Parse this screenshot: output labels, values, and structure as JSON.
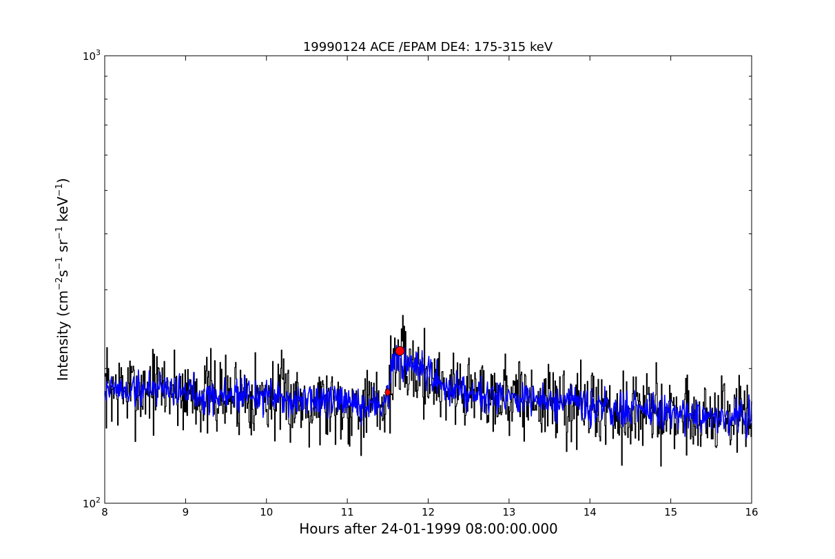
{
  "chart_data": {
    "type": "line",
    "title": "19990124 ACE /EPAM DE4: 175-315 keV",
    "xlabel": "Hours after 24-01-1999 08:00:00.000",
    "ylabel_prefix": "Intensity (cm",
    "ylabel_parts": [
      {
        "text": "Intensity (cm",
        "sup": false
      },
      {
        "text": "−2",
        "sup": true
      },
      {
        "text": "s",
        "sup": false
      },
      {
        "text": "−1",
        "sup": true
      },
      {
        "text": " sr",
        "sup": false
      },
      {
        "text": "−1",
        "sup": true
      },
      {
        "text": " keV",
        "sup": false
      },
      {
        "text": "−1",
        "sup": true
      },
      {
        "text": ")",
        "sup": false
      }
    ],
    "xlim": [
      8,
      16
    ],
    "ylim": [
      100,
      1000
    ],
    "yscale": "log",
    "xticks": [
      8,
      9,
      10,
      11,
      12,
      13,
      14,
      15,
      16
    ],
    "yticks_major": [
      {
        "value": 100,
        "base": "10",
        "exp": "2"
      },
      {
        "value": 1000,
        "base": "10",
        "exp": "3"
      }
    ],
    "yticks_minor": [
      200,
      300,
      400,
      500,
      600,
      700,
      800,
      900
    ],
    "grid": false,
    "colors": {
      "raw": "#000000",
      "smoothed": "#0000ff",
      "marker": "#ff0000"
    },
    "series": [
      {
        "role": "raw",
        "x": [
          8.0,
          8.25,
          8.5,
          8.75,
          9.0,
          9.1,
          9.25,
          9.5,
          9.75,
          10.0,
          10.25,
          10.5,
          10.75,
          11.0,
          11.25,
          11.45,
          11.5,
          11.55,
          11.6,
          11.65,
          11.7,
          11.8,
          11.9,
          12.0,
          12.25,
          12.5,
          12.75,
          13.0,
          13.25,
          13.5,
          13.75,
          14.0,
          14.25,
          14.5,
          14.75,
          15.0,
          15.25,
          15.5,
          15.75,
          16.0
        ],
        "y": [
          182,
          178,
          180,
          183,
          176,
          178,
          174,
          173,
          177,
          172,
          171,
          170,
          169,
          166,
          164,
          168,
          176,
          196,
          208,
          207,
          204,
          200,
          196,
          192,
          181,
          179,
          176,
          174,
          170,
          168,
          166,
          164,
          162,
          161,
          160,
          159,
          158,
          157,
          156,
          157
        ],
        "noise_amplitude_log": 0.045,
        "noise_seed": 7
      },
      {
        "role": "smoothed",
        "x": [
          8.0,
          8.25,
          8.5,
          8.75,
          9.0,
          9.1,
          9.25,
          9.5,
          9.75,
          10.0,
          10.25,
          10.5,
          10.75,
          11.0,
          11.25,
          11.45,
          11.5,
          11.55,
          11.6,
          11.65,
          11.7,
          11.8,
          11.9,
          12.0,
          12.25,
          12.5,
          12.75,
          13.0,
          13.25,
          13.5,
          13.75,
          14.0,
          14.25,
          14.5,
          14.75,
          15.0,
          15.25,
          15.5,
          15.75,
          16.0
        ],
        "y": [
          182,
          178,
          180,
          183,
          176,
          178,
          174,
          173,
          177,
          172,
          171,
          170,
          169,
          166,
          164,
          168,
          176,
          196,
          208,
          207,
          204,
          200,
          196,
          192,
          181,
          179,
          176,
          174,
          170,
          168,
          166,
          164,
          162,
          161,
          160,
          159,
          158,
          157,
          156,
          157
        ],
        "noise_amplitude_log": 0.02,
        "noise_seed": 19
      }
    ],
    "markers": [
      {
        "shape": "diamond",
        "x": 11.5,
        "y": 177
      },
      {
        "shape": "circle",
        "x": 11.65,
        "y": 219
      }
    ]
  }
}
